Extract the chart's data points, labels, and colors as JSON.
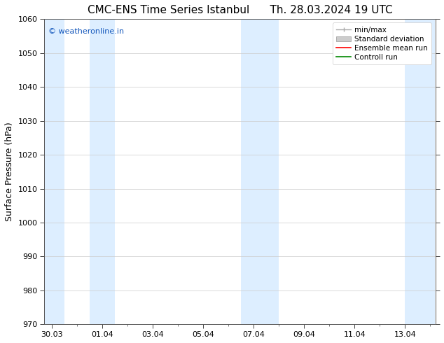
{
  "title_left": "CMC-ENS Time Series Istanbul",
  "title_right": "Th. 28.03.2024 19 UTC",
  "ylabel": "Surface Pressure (hPa)",
  "ylim": [
    970,
    1060
  ],
  "yticks": [
    970,
    980,
    990,
    1000,
    1010,
    1020,
    1030,
    1040,
    1050,
    1060
  ],
  "xtick_labels": [
    "30.03",
    "01.04",
    "03.04",
    "05.04",
    "07.04",
    "09.04",
    "11.04",
    "13.04"
  ],
  "xtick_positions": [
    0,
    2,
    4,
    6,
    8,
    10,
    12,
    14
  ],
  "xlim": [
    -0.3,
    15.2
  ],
  "shaded_bands": [
    {
      "x_start": -0.3,
      "x_end": 0.5
    },
    {
      "x_start": 1.5,
      "x_end": 2.5
    },
    {
      "x_start": 7.5,
      "x_end": 9.0
    },
    {
      "x_start": 14.0,
      "x_end": 15.2
    }
  ],
  "shade_color": "#ddeeff",
  "background_color": "#ffffff",
  "watermark_text": "© weatheronline.in",
  "watermark_color": "#1155bb",
  "legend_labels": [
    "min/max",
    "Standard deviation",
    "Ensemble mean run",
    "Controll run"
  ],
  "legend_minmax_color": "#aaaaaa",
  "legend_std_color": "#cccccc",
  "legend_mean_color": "#ff0000",
  "legend_ctrl_color": "#008800",
  "title_fontsize": 11,
  "axis_label_fontsize": 9,
  "tick_fontsize": 8,
  "watermark_fontsize": 8,
  "legend_fontsize": 7.5
}
